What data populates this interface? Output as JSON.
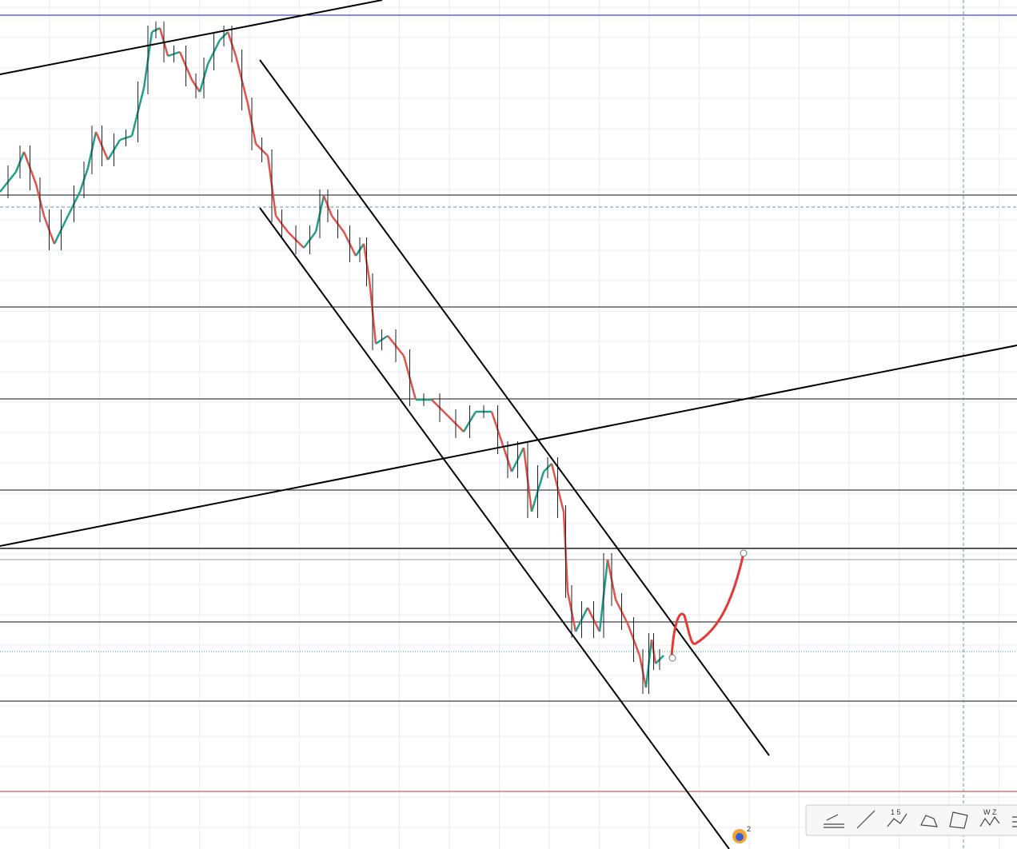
{
  "toolbar": {
    "buttons": [
      {
        "label": "1 5"
      },
      {
        "label": "W Z"
      }
    ]
  },
  "badge": {
    "count": "2"
  }
}
